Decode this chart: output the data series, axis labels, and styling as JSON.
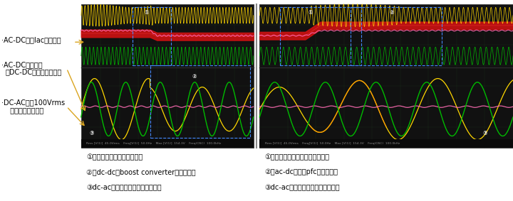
{
  "bg_color": "#ffffff",
  "scope_bg": "#111111",
  "scope_border": "#444444",
  "yellow_color": "#FFD700",
  "pink_color": "#FF69B4",
  "red_color": "#CC2222",
  "green_color": "#00BB00",
  "orange_color": "#FF8C00",
  "box_color": "#4488FF",
  "arrow_color": "#DAA520",
  "caption_left": [
    "①交流电源停止供电（停电）",
    "②从dc-dc（boost converter）开始供电",
    "③dc-ac逆变器的交流输出动作继续"
  ],
  "caption_right": [
    "①交流电源恢复供电（停电恢复）",
    "②仪ac-dc（交错pfc）恢复供电",
    "③dc-ac逆变器的交流输出动作继续"
  ],
  "label1": "·AC-DC输入Iac（黄色）",
  "label2": "·AC-DC输出电压",
  "label3": "（DC-DC高压侧（粉色）",
  "label4": "·DC-AC输出100Vrms",
  "label5": "  交流电源（绿色）"
}
